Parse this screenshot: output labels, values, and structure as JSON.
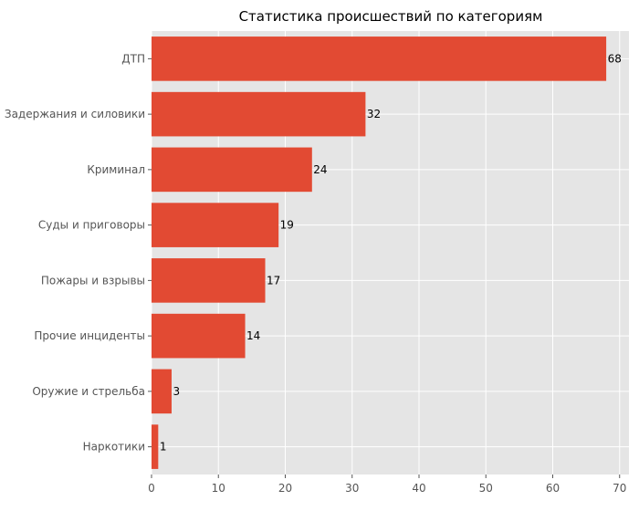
{
  "chart_data": {
    "type": "bar",
    "orientation": "horizontal",
    "title": "Статистика происшествий по категориям",
    "categories": [
      "ДТП",
      "Задержания и силовики",
      "Криминал",
      "Суды и приговоры",
      "Пожары и взрывы",
      "Прочие инциденты",
      "Оружие и стрельба",
      "Наркотики"
    ],
    "values": [
      68,
      32,
      24,
      19,
      17,
      14,
      3,
      1
    ],
    "xlim": [
      0,
      71.4
    ],
    "xticks": [
      0,
      10,
      20,
      30,
      40,
      50,
      60,
      70
    ],
    "grid": true,
    "bar_color": "#E24A33",
    "background_color": "#E5E5E5",
    "grid_color": "#FFFFFF"
  }
}
